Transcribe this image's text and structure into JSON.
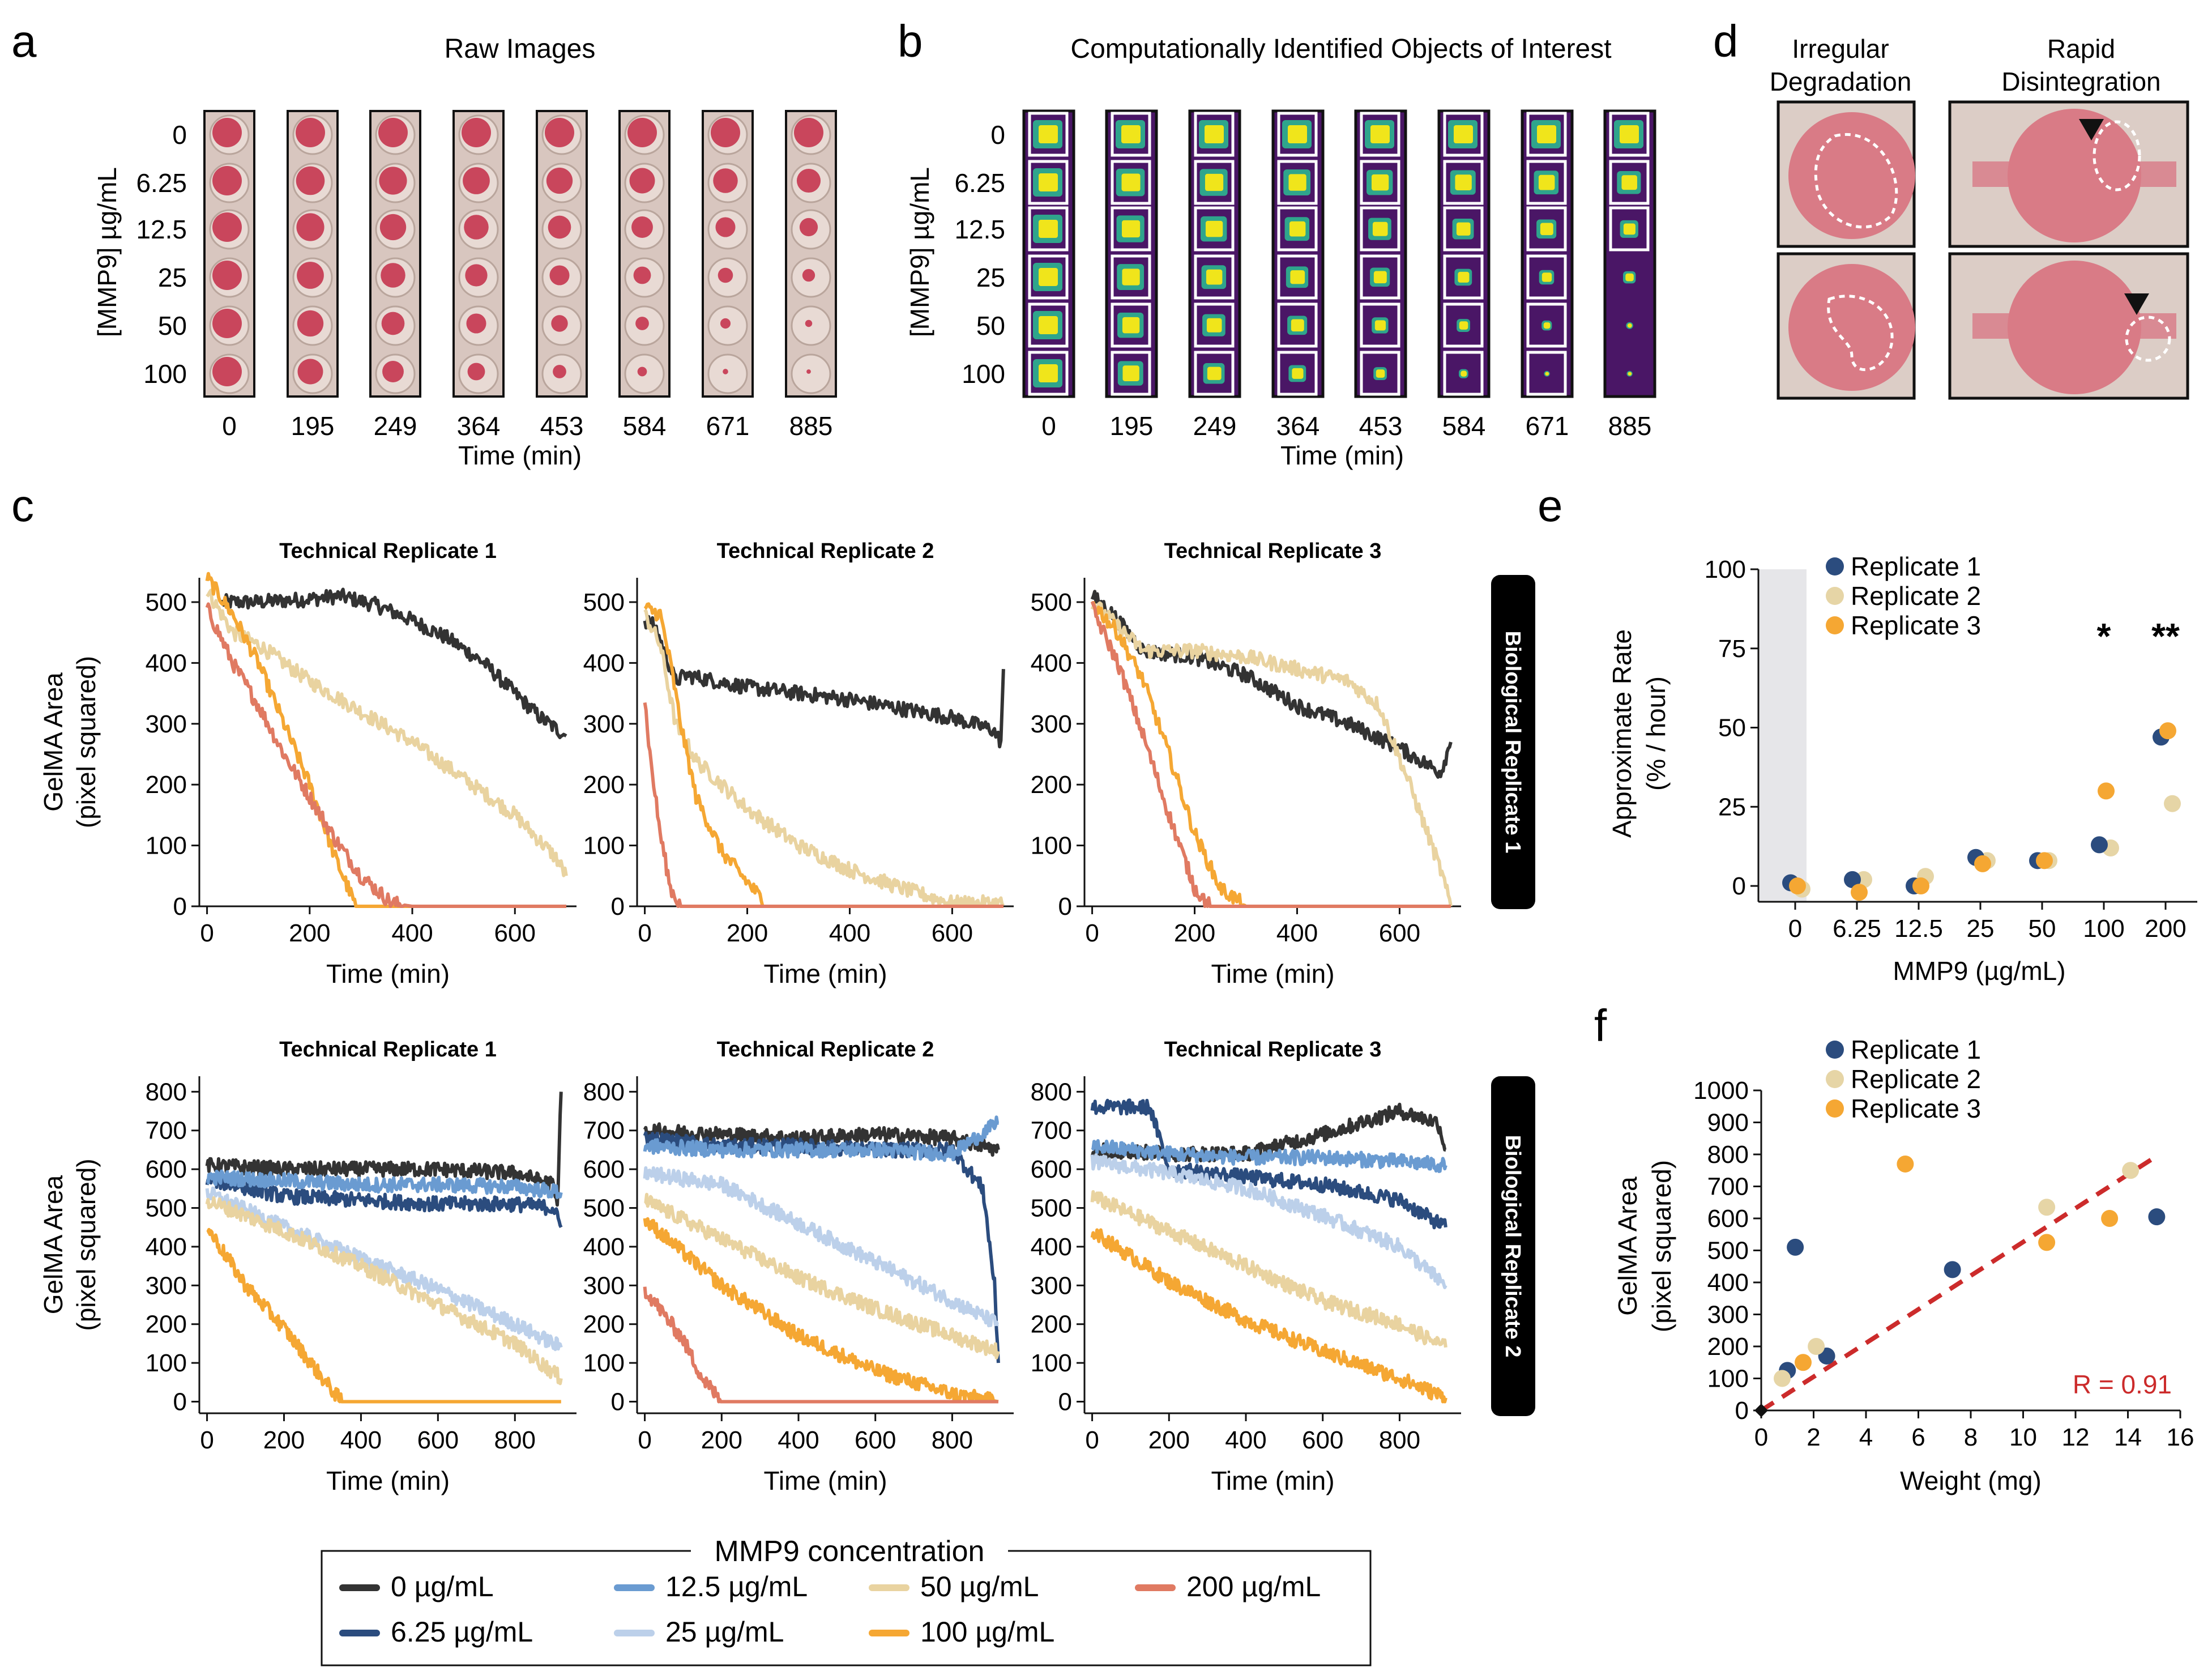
{
  "colors": {
    "c0": "#333333",
    "c625": "#2b4c7e",
    "c125": "#6a9bd1",
    "c25": "#bcd0ea",
    "c50": "#e9d3a0",
    "c100": "#f5a733",
    "c200": "#e07a62",
    "rep1": "#2b4c7e",
    "rep2": "#e6d5a6",
    "rep3": "#f5a733",
    "fit": "#cc2b2b",
    "gel": "#c9465c",
    "well": "#dccdc6",
    "heat": "#4a1666",
    "heatHot": "#f0e51b",
    "heatMid": "#2fa58c"
  },
  "panel_letters": [
    "a",
    "b",
    "c",
    "d",
    "e",
    "f"
  ],
  "panel_a": {
    "title": "Raw Images",
    "ylabel": "[MMP9] µg/mL",
    "rows": [
      "0",
      "6.25",
      "12.5",
      "25",
      "50",
      "100"
    ],
    "times": [
      "0",
      "195",
      "249",
      "364",
      "453",
      "584",
      "671",
      "885"
    ],
    "xlabel": "Time (min)"
  },
  "panel_b": {
    "title": "Computationally Identified Objects of Interest",
    "ylabel": "[MMP9] µg/mL",
    "rows": [
      "0",
      "6.25",
      "12.5",
      "25",
      "50",
      "100"
    ],
    "times": [
      "0",
      "195",
      "249",
      "364",
      "453",
      "584",
      "671",
      "885"
    ],
    "xlabel": "Time (min)"
  },
  "panel_d": {
    "col_titles": [
      "Irregular\nDegradation",
      "Rapid\nDisintegration"
    ]
  },
  "panel_c": {
    "row_labels": [
      "Biological Replicate 1",
      "Biological Replicate 2"
    ],
    "col_titles": [
      "Technical Replicate 1",
      "Technical Replicate 2",
      "Technical Replicate 3"
    ],
    "ylabel_1": "GelMA Area",
    "ylabel_2": "(pixel squared)",
    "xlabel": "Time (min)",
    "row1_yticks": [
      "0",
      "100",
      "200",
      "300",
      "400",
      "500"
    ],
    "row2_yticks": [
      "0",
      "100",
      "200",
      "300",
      "400",
      "500",
      "600",
      "700",
      "800"
    ],
    "row1_xticks": [
      "0",
      "200",
      "400",
      "600"
    ],
    "row2_xticks": [
      "0",
      "200",
      "400",
      "600",
      "800"
    ]
  },
  "legend": {
    "title": "MMP9 concentration",
    "items": [
      "0 µg/mL",
      "6.25 µg/mL",
      "12.5 µg/mL",
      "25 µg/mL",
      "50 µg/mL",
      "100 µg/mL",
      "200 µg/mL"
    ]
  },
  "panel_e": {
    "ylabel_1": "Approximate Rate",
    "ylabel_2": "(% / hour)",
    "xlabel": "MMP9 (µg/mL)",
    "yticks": [
      "0",
      "25",
      "50",
      "75",
      "100"
    ],
    "categories": [
      "0",
      "6.25",
      "12.5",
      "25",
      "50",
      "100",
      "200"
    ],
    "legend": [
      "Replicate 1",
      "Replicate 2",
      "Replicate 3"
    ],
    "stars": [
      "*",
      "**"
    ]
  },
  "panel_f": {
    "ylabel_1": "GelMA Area",
    "ylabel_2": "(pixel squared)",
    "xlabel": "Weight (mg)",
    "yticks": [
      "0",
      "100",
      "200",
      "300",
      "400",
      "500",
      "600",
      "700",
      "800",
      "900",
      "1000"
    ],
    "xticks": [
      "0",
      "2",
      "4",
      "6",
      "8",
      "10",
      "12",
      "14",
      "16"
    ],
    "legend": [
      "Replicate 1",
      "Replicate 2",
      "Replicate 3"
    ],
    "r_label": "R = 0.91"
  },
  "chart_data": [
    {
      "type": "line",
      "title": "Technical Replicate 1",
      "group": "Biological Replicate 1",
      "xlabel": "Time (min)",
      "ylabel": "GelMA Area (pixel squared)",
      "xlim": [
        0,
        700
      ],
      "ylim": [
        0,
        540
      ],
      "series": [
        {
          "name": "0 µg/mL",
          "x": [
            30,
            100,
            200,
            260,
            330,
            400,
            470,
            540,
            600,
            650,
            700
          ],
          "values": [
            500,
            500,
            505,
            510,
            495,
            470,
            440,
            400,
            350,
            310,
            280
          ]
        },
        {
          "name": "50 µg/mL",
          "x": [
            0,
            50,
            100,
            200,
            300,
            400,
            500,
            600,
            680,
            700
          ],
          "values": [
            520,
            450,
            430,
            370,
            320,
            270,
            210,
            150,
            80,
            50
          ]
        },
        {
          "name": "100 µg/mL",
          "x": [
            0,
            50,
            100,
            150,
            200,
            250,
            290,
            310,
            700
          ],
          "values": [
            540,
            480,
            400,
            300,
            200,
            80,
            0,
            0,
            0
          ]
        },
        {
          "name": "200 µg/mL",
          "x": [
            0,
            50,
            100,
            150,
            200,
            250,
            300,
            360,
            400,
            700
          ],
          "values": [
            490,
            400,
            330,
            250,
            180,
            110,
            50,
            5,
            0,
            0
          ]
        }
      ]
    },
    {
      "type": "line",
      "title": "Technical Replicate 2",
      "group": "Biological Replicate 1",
      "xlabel": "Time (min)",
      "ylabel": "GelMA Area (pixel squared)",
      "xlim": [
        0,
        700
      ],
      "ylim": [
        0,
        540
      ],
      "series": [
        {
          "name": "0 µg/mL",
          "x": [
            0,
            20,
            60,
            80,
            200,
            400,
            600,
            680,
            695,
            700
          ],
          "values": [
            470,
            460,
            370,
            380,
            360,
            340,
            310,
            290,
            270,
            390
          ]
        },
        {
          "name": "50 µg/mL",
          "x": [
            0,
            30,
            60,
            100,
            200,
            300,
            400,
            500,
            600,
            700
          ],
          "values": [
            480,
            430,
            300,
            240,
            160,
            100,
            60,
            30,
            5,
            5
          ]
        },
        {
          "name": "100 µg/mL",
          "x": [
            0,
            30,
            50,
            70,
            100,
            150,
            200,
            240,
            700
          ],
          "values": [
            490,
            480,
            400,
            300,
            180,
            90,
            40,
            0,
            0
          ]
        },
        {
          "name": "200 µg/mL",
          "x": [
            0,
            10,
            30,
            50,
            70,
            700
          ],
          "values": [
            340,
            250,
            120,
            30,
            0,
            0
          ]
        }
      ]
    },
    {
      "type": "line",
      "title": "Technical Replicate 3",
      "group": "Biological Replicate 1",
      "xlabel": "Time (min)",
      "ylabel": "GelMA Area (pixel squared)",
      "xlim": [
        0,
        700
      ],
      "ylim": [
        0,
        540
      ],
      "series": [
        {
          "name": "0 µg/mL",
          "x": [
            0,
            40,
            100,
            200,
            300,
            400,
            500,
            600,
            680,
            700
          ],
          "values": [
            510,
            480,
            420,
            410,
            380,
            330,
            300,
            260,
            220,
            270
          ]
        },
        {
          "name": "50 µg/mL",
          "x": [
            0,
            100,
            200,
            300,
            400,
            500,
            560,
            620,
            680,
            700
          ],
          "values": [
            500,
            420,
            420,
            410,
            390,
            370,
            330,
            200,
            60,
            0
          ]
        },
        {
          "name": "100 µg/mL",
          "x": [
            0,
            50,
            100,
            150,
            200,
            250,
            300,
            700
          ],
          "values": [
            500,
            450,
            370,
            250,
            120,
            30,
            0,
            0
          ]
        },
        {
          "name": "200 µg/mL",
          "x": [
            0,
            50,
            100,
            150,
            200,
            230,
            700
          ],
          "values": [
            490,
            400,
            280,
            150,
            30,
            0,
            0
          ]
        }
      ]
    },
    {
      "type": "line",
      "title": "Technical Replicate 1",
      "group": "Biological Replicate 2",
      "xlabel": "Time (min)",
      "ylabel": "GelMA Area (pixel squared)",
      "xlim": [
        0,
        950
      ],
      "ylim": [
        0,
        830
      ],
      "series": [
        {
          "name": "0 µg/mL",
          "x": [
            0,
            200,
            400,
            600,
            800,
            900,
            910,
            920
          ],
          "values": [
            610,
            600,
            600,
            600,
            590,
            560,
            500,
            800
          ]
        },
        {
          "name": "6.25 µg/mL",
          "x": [
            0,
            200,
            400,
            600,
            800,
            900,
            920
          ],
          "values": [
            575,
            530,
            520,
            510,
            510,
            500,
            450
          ]
        },
        {
          "name": "12.5 µg/mL",
          "x": [
            0,
            200,
            400,
            600,
            800,
            920
          ],
          "values": [
            580,
            570,
            560,
            560,
            555,
            540
          ]
        },
        {
          "name": "25 µg/mL",
          "x": [
            0,
            200,
            400,
            600,
            800,
            920
          ],
          "values": [
            540,
            450,
            370,
            290,
            200,
            140
          ]
        },
        {
          "name": "50 µg/mL",
          "x": [
            0,
            200,
            400,
            600,
            800,
            920
          ],
          "values": [
            520,
            440,
            350,
            250,
            150,
            60
          ]
        },
        {
          "name": "100 µg/mL",
          "x": [
            0,
            100,
            200,
            300,
            350,
            920
          ],
          "values": [
            450,
            300,
            190,
            60,
            0,
            0
          ]
        }
      ]
    },
    {
      "type": "line",
      "title": "Technical Replicate 2",
      "group": "Biological Replicate 2",
      "xlabel": "Time (min)",
      "ylabel": "GelMA Area (pixel squared)",
      "xlim": [
        0,
        950
      ],
      "ylim": [
        0,
        830
      ],
      "series": [
        {
          "name": "0 µg/mL",
          "x": [
            0,
            200,
            400,
            600,
            800,
            920
          ],
          "values": [
            700,
            690,
            680,
            690,
            680,
            650
          ]
        },
        {
          "name": "6.25 µg/mL",
          "x": [
            0,
            200,
            400,
            600,
            800,
            880,
            910,
            920
          ],
          "values": [
            680,
            660,
            660,
            650,
            650,
            550,
            300,
            100
          ]
        },
        {
          "name": "12.5 µg/mL",
          "x": [
            0,
            200,
            400,
            600,
            800,
            920
          ],
          "values": [
            660,
            650,
            650,
            650,
            640,
            720
          ]
        },
        {
          "name": "25 µg/mL",
          "x": [
            0,
            200,
            400,
            600,
            800,
            920
          ],
          "values": [
            590,
            560,
            460,
            360,
            260,
            200
          ]
        },
        {
          "name": "50 µg/mL",
          "x": [
            0,
            200,
            400,
            600,
            800,
            920
          ],
          "values": [
            520,
            420,
            320,
            240,
            170,
            130
          ]
        },
        {
          "name": "100 µg/mL",
          "x": [
            0,
            200,
            400,
            600,
            800,
            920
          ],
          "values": [
            470,
            300,
            170,
            80,
            20,
            0
          ]
        },
        {
          "name": "200 µg/mL",
          "x": [
            0,
            100,
            150,
            200,
            920
          ],
          "values": [
            290,
            160,
            60,
            0,
            0
          ]
        }
      ]
    },
    {
      "type": "line",
      "title": "Technical Replicate 3",
      "group": "Biological Replicate 2",
      "xlabel": "Time (min)",
      "ylabel": "GelMA Area (pixel squared)",
      "xlim": [
        0,
        950
      ],
      "ylim": [
        0,
        830
      ],
      "series": [
        {
          "name": "0 µg/mL",
          "x": [
            0,
            200,
            400,
            600,
            800,
            900,
            920
          ],
          "values": [
            650,
            640,
            640,
            690,
            750,
            720,
            650
          ]
        },
        {
          "name": "6.25 µg/mL",
          "x": [
            0,
            150,
            200,
            400,
            600,
            800,
            920
          ],
          "values": [
            760,
            760,
            600,
            580,
            560,
            520,
            450
          ]
        },
        {
          "name": "12.5 µg/mL",
          "x": [
            0,
            200,
            400,
            600,
            800,
            920
          ],
          "values": [
            660,
            640,
            630,
            630,
            620,
            610
          ]
        },
        {
          "name": "25 µg/mL",
          "x": [
            0,
            200,
            400,
            600,
            800,
            920
          ],
          "values": [
            620,
            590,
            550,
            480,
            400,
            300
          ]
        },
        {
          "name": "50 µg/mL",
          "x": [
            0,
            200,
            400,
            600,
            800,
            920
          ],
          "values": [
            530,
            440,
            350,
            260,
            200,
            140
          ]
        },
        {
          "name": "100 µg/mL",
          "x": [
            0,
            200,
            400,
            600,
            800,
            920
          ],
          "values": [
            440,
            310,
            210,
            130,
            60,
            10
          ]
        }
      ]
    },
    {
      "type": "scatter",
      "title": "e",
      "xlabel": "MMP9 (µg/mL)",
      "ylabel": "Approximate Rate (% / hour)",
      "categories": [
        "0",
        "6.25",
        "12.5",
        "25",
        "50",
        "100",
        "200"
      ],
      "ylim": [
        -5,
        100
      ],
      "series": [
        {
          "name": "Replicate 1",
          "values": [
            1,
            2,
            0,
            9,
            8,
            13,
            47
          ]
        },
        {
          "name": "Replicate 2",
          "values": [
            -1,
            2,
            3,
            8,
            8,
            12,
            26
          ]
        },
        {
          "name": "Replicate 3",
          "values": [
            0,
            -2,
            0,
            7,
            8,
            30,
            49
          ]
        }
      ],
      "annotations": [
        {
          "category": "100",
          "text": "*"
        },
        {
          "category": "200",
          "text": "**"
        }
      ]
    },
    {
      "type": "scatter",
      "title": "f",
      "xlabel": "Weight (mg)",
      "ylabel": "GelMA Area (pixel squared)",
      "xlim": [
        0,
        16
      ],
      "ylim": [
        0,
        1050
      ],
      "series": [
        {
          "name": "Replicate 1",
          "x": [
            1.0,
            1.3,
            2.5,
            7.3,
            15.1
          ],
          "values": [
            125,
            510,
            170,
            440,
            605
          ]
        },
        {
          "name": "Replicate 2",
          "x": [
            0.8,
            2.1,
            10.9,
            14.1
          ],
          "values": [
            100,
            200,
            635,
            750
          ]
        },
        {
          "name": "Replicate 3",
          "x": [
            1.6,
            5.5,
            10.9,
            13.3
          ],
          "values": [
            150,
            770,
            525,
            600
          ]
        }
      ],
      "fit": {
        "x": [
          0,
          15.2
        ],
        "values": [
          0,
          800
        ]
      },
      "annotation": "R = 0.91"
    }
  ]
}
